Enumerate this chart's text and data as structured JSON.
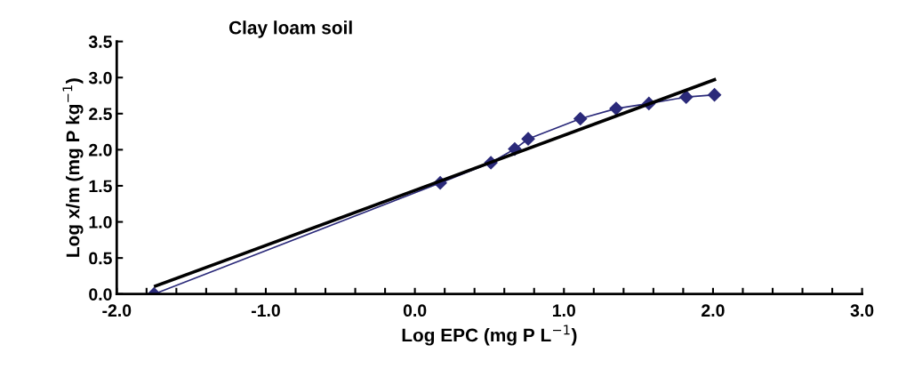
{
  "chart_data": {
    "type": "line",
    "title": "Clay loam soil",
    "xlabel": "Log EPC (mg P L$^{−1}$)",
    "ylabel": "Log x/m (mg P kg$^{−1}$)",
    "series": [
      {
        "color": "#2b2a7a",
        "marker": "diamond",
        "x": [
          -1.75,
          0.17,
          0.51,
          0.67,
          0.76,
          1.11,
          1.35,
          1.57,
          1.82,
          2.01
        ],
        "values": [
          0,
          1.54,
          1.82,
          2.01,
          2.15,
          2.43,
          2.57,
          2.64,
          2.73,
          2.76
        ]
      },
      {
        "color": "#000000",
        "marker": "none",
        "x": [
          -1.74,
          2.01
        ],
        "values": [
          0.11,
          2.97
        ]
      }
    ],
    "xlim": [
      -2,
      3
    ],
    "ylim": [
      0,
      3.5
    ],
    "xticks": [
      {
        "value": -2,
        "label": "-2.0"
      },
      {
        "value": -1.8,
        "label": null
      },
      {
        "value": -1.6,
        "label": null
      },
      {
        "value": -1.4,
        "label": null
      },
      {
        "value": -1.2,
        "label": null
      },
      {
        "value": -1,
        "label": "-1.0"
      },
      {
        "value": -0.8,
        "label": null
      },
      {
        "value": -0.6,
        "label": null
      },
      {
        "value": -0.4,
        "label": null
      },
      {
        "value": -0.2,
        "label": null
      },
      {
        "value": 0,
        "label": "0.0"
      },
      {
        "value": 0.2,
        "label": null
      },
      {
        "value": 0.4,
        "label": null
      },
      {
        "value": 0.6,
        "label": null
      },
      {
        "value": 0.8,
        "label": null
      },
      {
        "value": 1,
        "label": "1.0"
      },
      {
        "value": 1.2,
        "label": null
      },
      {
        "value": 1.4,
        "label": null
      },
      {
        "value": 1.6,
        "label": null
      },
      {
        "value": 1.8,
        "label": null
      },
      {
        "value": 2,
        "label": "2.0"
      },
      {
        "value": 2.2,
        "label": null
      },
      {
        "value": 2.4,
        "label": null
      },
      {
        "value": 2.6,
        "label": null
      },
      {
        "value": 2.8,
        "label": null
      },
      {
        "value": 3,
        "label": "3.0"
      }
    ],
    "yticks": [
      {
        "value": 0,
        "label": "0.0"
      },
      {
        "value": 0.5,
        "label": "0.5"
      },
      {
        "value": 1,
        "label": "1.0"
      },
      {
        "value": 1.5,
        "label": "1.5"
      },
      {
        "value": 2,
        "label": "2.0"
      },
      {
        "value": 2.5,
        "label": "2.5"
      },
      {
        "value": 3,
        "label": "3.0"
      },
      {
        "value": 3.5,
        "label": "3.5"
      }
    ],
    "grid": false,
    "legend": false
  }
}
